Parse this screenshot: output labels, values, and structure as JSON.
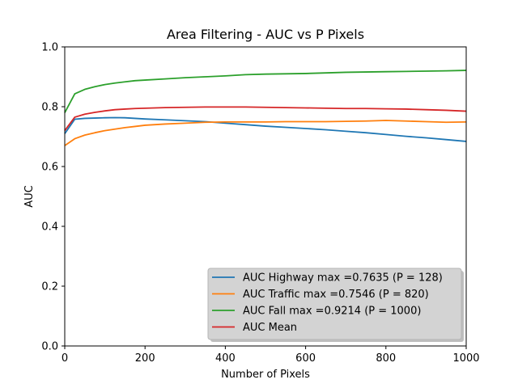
{
  "chart_data": {
    "type": "line",
    "title": "Area Filtering - AUC vs P Pixels",
    "xlabel": "Number of Pixels",
    "ylabel": "AUC",
    "xlim": [
      0,
      1000
    ],
    "ylim": [
      0.0,
      1.0
    ],
    "xticks": [
      0,
      200,
      400,
      600,
      800,
      1000
    ],
    "xtick_labels": [
      "0",
      "200",
      "400",
      "600",
      "800",
      "1000"
    ],
    "yticks": [
      0.0,
      0.2,
      0.4,
      0.6,
      0.8,
      1.0
    ],
    "ytick_labels": [
      "0.0",
      "0.2",
      "0.4",
      "0.6",
      "0.8",
      "1.0"
    ],
    "grid": false,
    "legend_position": "lower-right",
    "x": [
      0,
      25,
      50,
      75,
      100,
      125,
      150,
      175,
      200,
      250,
      300,
      350,
      400,
      450,
      500,
      550,
      600,
      650,
      700,
      750,
      800,
      850,
      900,
      950,
      1000
    ],
    "series": [
      {
        "name": "AUC Highway max =0.7635 (P = 128)",
        "color": "#1f77b4",
        "values": [
          0.71,
          0.758,
          0.761,
          0.762,
          0.763,
          0.7635,
          0.763,
          0.761,
          0.759,
          0.756,
          0.753,
          0.75,
          0.745,
          0.74,
          0.735,
          0.731,
          0.727,
          0.723,
          0.718,
          0.713,
          0.707,
          0.701,
          0.696,
          0.69,
          0.684
        ]
      },
      {
        "name": "AUC Traffic max =0.7546 (P = 820)",
        "color": "#ff7f0e",
        "values": [
          0.67,
          0.693,
          0.705,
          0.713,
          0.72,
          0.725,
          0.73,
          0.734,
          0.738,
          0.742,
          0.745,
          0.748,
          0.749,
          0.749,
          0.749,
          0.75,
          0.75,
          0.75,
          0.751,
          0.752,
          0.754,
          0.752,
          0.75,
          0.748,
          0.749
        ]
      },
      {
        "name": "AUC Fall max =0.9214 (P = 1000)",
        "color": "#2ca02c",
        "values": [
          0.78,
          0.843,
          0.858,
          0.867,
          0.874,
          0.879,
          0.883,
          0.887,
          0.889,
          0.893,
          0.897,
          0.9,
          0.903,
          0.907,
          0.909,
          0.91,
          0.911,
          0.913,
          0.915,
          0.916,
          0.917,
          0.918,
          0.919,
          0.92,
          0.9214
        ]
      },
      {
        "name": "AUC Mean",
        "color": "#d62728",
        "values": [
          0.72,
          0.765,
          0.775,
          0.781,
          0.786,
          0.79,
          0.792,
          0.794,
          0.795,
          0.797,
          0.798,
          0.799,
          0.799,
          0.799,
          0.798,
          0.797,
          0.796,
          0.795,
          0.794,
          0.794,
          0.793,
          0.792,
          0.79,
          0.788,
          0.785
        ]
      }
    ]
  }
}
